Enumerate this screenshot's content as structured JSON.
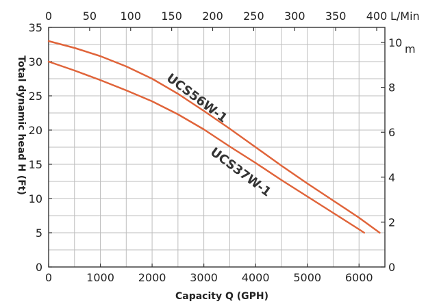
{
  "chart_data": {
    "type": "line",
    "x": {
      "label": "Capacity Q (GPH)",
      "range": [
        0,
        6500
      ],
      "ticks": [
        0,
        1000,
        2000,
        3000,
        4000,
        5000,
        6000
      ]
    },
    "x_top": {
      "unit_label": "L/Min",
      "range": [
        0,
        410
      ],
      "ticks": [
        0,
        50,
        100,
        150,
        200,
        250,
        300,
        350,
        400
      ]
    },
    "y": {
      "label": "Total dynamic head H (Ft)",
      "range": [
        0,
        35
      ],
      "ticks": [
        0,
        5,
        10,
        15,
        20,
        25,
        30,
        35
      ]
    },
    "y_right": {
      "unit_label": "m",
      "range": [
        0,
        10.67
      ],
      "ticks": [
        0,
        2,
        4,
        6,
        8,
        10
      ]
    },
    "grid": true,
    "series_color": "#e0643a",
    "series": [
      {
        "name": "UCS56W-1",
        "x": [
          0,
          500,
          1000,
          1500,
          2000,
          2500,
          3000,
          3500,
          4000,
          4500,
          5000,
          5500,
          6000,
          6400
        ],
        "y": [
          33,
          32,
          30.8,
          29.3,
          27.5,
          25.3,
          22.8,
          20.2,
          17.5,
          14.8,
          12.2,
          9.7,
          7.2,
          5
        ]
      },
      {
        "name": "UCS37W-1",
        "x": [
          0,
          500,
          1000,
          1500,
          2000,
          2500,
          3000,
          3500,
          4000,
          4500,
          5000,
          5500,
          6000,
          6100
        ],
        "y": [
          30,
          28.7,
          27.3,
          25.8,
          24.2,
          22.3,
          20.1,
          17.6,
          15.2,
          12.7,
          10.3,
          7.9,
          5.5,
          5
        ]
      }
    ]
  }
}
